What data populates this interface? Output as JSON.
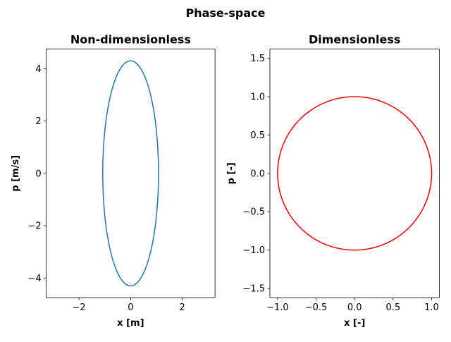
{
  "figure": {
    "suptitle": "Phase-space"
  },
  "chart_data": [
    {
      "type": "line",
      "title": "Non-dimensionless",
      "xlabel": "x [m]",
      "ylabel": "p [m/s]",
      "xlim": [
        -3.27,
        3.27
      ],
      "ylim": [
        -4.75,
        4.75
      ],
      "xticks": [
        -2,
        0,
        2
      ],
      "xtick_labels": [
        "−2",
        "0",
        "2"
      ],
      "yticks": [
        -4,
        -2,
        0,
        2,
        4
      ],
      "ytick_labels": [
        "−4",
        "−2",
        "0",
        "2",
        "4"
      ],
      "grid": false,
      "legend": null,
      "color": "#1f77b4",
      "series": [
        {
          "shape": "ellipse",
          "x_amplitude": 1.08,
          "p_amplitude": 4.3
        }
      ]
    },
    {
      "type": "line",
      "title": "Dimensionless",
      "xlabel": "x [-]",
      "ylabel": "p [-]",
      "xlim": [
        -1.1,
        1.1
      ],
      "ylim": [
        -1.62,
        1.62
      ],
      "xticks": [
        -1.0,
        -0.5,
        0.0,
        0.5,
        1.0
      ],
      "xtick_labels": [
        "−1.0",
        "−0.5",
        "0.0",
        "0.5",
        "1.0"
      ],
      "yticks": [
        -1.5,
        -1.0,
        -0.5,
        0.0,
        0.5,
        1.0,
        1.5
      ],
      "ytick_labels": [
        "−1.5",
        "−1.0",
        "−0.5",
        "0.0",
        "0.5",
        "1.0",
        "1.5"
      ],
      "grid": false,
      "legend": null,
      "color": "#ff0000",
      "series": [
        {
          "shape": "circle",
          "x_amplitude": 1.0,
          "p_amplitude": 1.0
        }
      ]
    }
  ]
}
